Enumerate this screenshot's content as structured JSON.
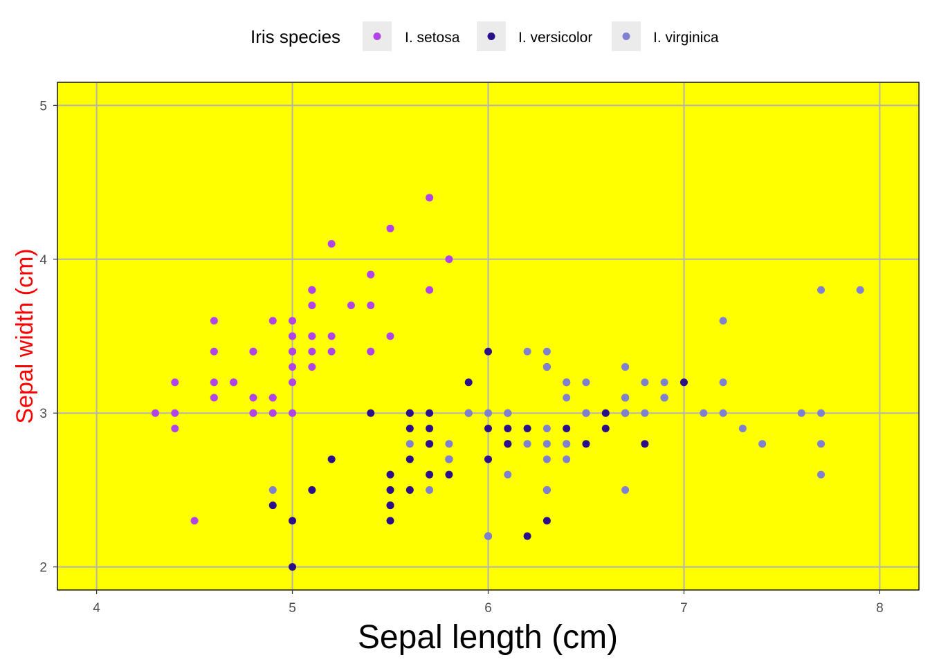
{
  "chart_data": {
    "type": "scatter",
    "title": "",
    "xlabel": "Sepal length (cm)",
    "ylabel": "Sepal width (cm)",
    "xlim": [
      3.8,
      8.2
    ],
    "ylim": [
      1.85,
      5.15
    ],
    "xticks": [
      4,
      5,
      6,
      7,
      8
    ],
    "yticks": [
      2,
      3,
      4,
      5
    ],
    "xtick_labels": [
      "4",
      "5",
      "6",
      "7",
      "8"
    ],
    "ytick_labels": [
      "2",
      "3",
      "4",
      "5"
    ],
    "grid": true,
    "legend_position": "top",
    "legend_title": "Iris species",
    "colors": {
      "panel_background": "#ffff00",
      "grid": "#b3b3b3",
      "ylabel": "#ff0000",
      "xlabel": "#000000"
    },
    "series": [
      {
        "name": "I. setosa",
        "color": "#b044e6",
        "points": [
          [
            5.1,
            3.5
          ],
          [
            4.9,
            3.0
          ],
          [
            4.7,
            3.2
          ],
          [
            4.6,
            3.1
          ],
          [
            5.0,
            3.6
          ],
          [
            5.4,
            3.9
          ],
          [
            4.6,
            3.4
          ],
          [
            5.0,
            3.4
          ],
          [
            4.4,
            2.9
          ],
          [
            4.9,
            3.1
          ],
          [
            5.4,
            3.7
          ],
          [
            4.8,
            3.4
          ],
          [
            4.8,
            3.0
          ],
          [
            4.3,
            3.0
          ],
          [
            5.8,
            4.0
          ],
          [
            5.7,
            4.4
          ],
          [
            5.4,
            3.9
          ],
          [
            5.1,
            3.5
          ],
          [
            5.7,
            3.8
          ],
          [
            5.1,
            3.8
          ],
          [
            5.4,
            3.4
          ],
          [
            5.1,
            3.7
          ],
          [
            4.6,
            3.6
          ],
          [
            5.1,
            3.3
          ],
          [
            4.8,
            3.4
          ],
          [
            5.0,
            3.0
          ],
          [
            5.0,
            3.4
          ],
          [
            5.2,
            3.5
          ],
          [
            5.2,
            3.4
          ],
          [
            4.7,
            3.2
          ],
          [
            4.8,
            3.1
          ],
          [
            5.4,
            3.4
          ],
          [
            5.2,
            4.1
          ],
          [
            5.5,
            4.2
          ],
          [
            4.9,
            3.1
          ],
          [
            5.0,
            3.2
          ],
          [
            5.5,
            3.5
          ],
          [
            4.9,
            3.6
          ],
          [
            4.4,
            3.0
          ],
          [
            5.1,
            3.4
          ],
          [
            5.0,
            3.5
          ],
          [
            4.5,
            2.3
          ],
          [
            4.4,
            3.2
          ],
          [
            5.0,
            3.5
          ],
          [
            5.1,
            3.8
          ],
          [
            4.8,
            3.0
          ],
          [
            5.1,
            3.8
          ],
          [
            4.6,
            3.2
          ],
          [
            5.3,
            3.7
          ],
          [
            5.0,
            3.3
          ]
        ]
      },
      {
        "name": "I. versicolor",
        "color": "#2b0e8a",
        "points": [
          [
            7.0,
            3.2
          ],
          [
            6.4,
            3.2
          ],
          [
            6.9,
            3.1
          ],
          [
            5.5,
            2.3
          ],
          [
            6.5,
            2.8
          ],
          [
            5.7,
            2.8
          ],
          [
            6.3,
            3.3
          ],
          [
            4.9,
            2.4
          ],
          [
            6.6,
            2.9
          ],
          [
            5.2,
            2.7
          ],
          [
            5.0,
            2.0
          ],
          [
            5.9,
            3.0
          ],
          [
            6.0,
            2.2
          ],
          [
            6.1,
            2.9
          ],
          [
            5.6,
            2.9
          ],
          [
            6.7,
            3.1
          ],
          [
            5.6,
            3.0
          ],
          [
            5.8,
            2.7
          ],
          [
            6.2,
            2.2
          ],
          [
            5.6,
            2.5
          ],
          [
            5.9,
            3.2
          ],
          [
            6.1,
            2.8
          ],
          [
            6.3,
            2.5
          ],
          [
            6.1,
            2.8
          ],
          [
            6.4,
            2.9
          ],
          [
            6.6,
            3.0
          ],
          [
            6.8,
            2.8
          ],
          [
            6.7,
            3.0
          ],
          [
            6.0,
            2.9
          ],
          [
            5.7,
            2.6
          ],
          [
            5.5,
            2.4
          ],
          [
            5.5,
            2.4
          ],
          [
            5.8,
            2.7
          ],
          [
            6.0,
            2.7
          ],
          [
            5.4,
            3.0
          ],
          [
            6.0,
            3.4
          ],
          [
            6.7,
            3.1
          ],
          [
            6.3,
            2.3
          ],
          [
            5.6,
            3.0
          ],
          [
            5.5,
            2.5
          ],
          [
            5.5,
            2.6
          ],
          [
            6.1,
            3.0
          ],
          [
            5.8,
            2.6
          ],
          [
            5.0,
            2.3
          ],
          [
            5.6,
            2.7
          ],
          [
            5.7,
            3.0
          ],
          [
            5.7,
            2.9
          ],
          [
            6.2,
            2.9
          ],
          [
            5.1,
            2.5
          ],
          [
            5.7,
            2.8
          ]
        ]
      },
      {
        "name": "I. virginica",
        "color": "#8080d0",
        "points": [
          [
            6.3,
            3.3
          ],
          [
            5.8,
            2.7
          ],
          [
            7.1,
            3.0
          ],
          [
            6.3,
            2.9
          ],
          [
            6.5,
            3.0
          ],
          [
            7.6,
            3.0
          ],
          [
            4.9,
            2.5
          ],
          [
            7.3,
            2.9
          ],
          [
            6.7,
            2.5
          ],
          [
            7.2,
            3.6
          ],
          [
            6.5,
            3.2
          ],
          [
            6.4,
            2.7
          ],
          [
            6.8,
            3.0
          ],
          [
            5.7,
            2.5
          ],
          [
            5.8,
            2.8
          ],
          [
            6.4,
            3.2
          ],
          [
            6.5,
            3.0
          ],
          [
            7.7,
            3.8
          ],
          [
            7.7,
            2.6
          ],
          [
            6.0,
            2.2
          ],
          [
            6.9,
            3.2
          ],
          [
            5.6,
            2.8
          ],
          [
            7.7,
            2.8
          ],
          [
            6.3,
            2.7
          ],
          [
            6.7,
            3.3
          ],
          [
            7.2,
            3.2
          ],
          [
            6.2,
            2.8
          ],
          [
            6.1,
            3.0
          ],
          [
            6.4,
            2.8
          ],
          [
            7.2,
            3.0
          ],
          [
            7.4,
            2.8
          ],
          [
            7.9,
            3.8
          ],
          [
            6.4,
            2.8
          ],
          [
            6.3,
            2.8
          ],
          [
            6.1,
            2.6
          ],
          [
            7.7,
            3.0
          ],
          [
            6.3,
            3.4
          ],
          [
            6.4,
            3.1
          ],
          [
            6.0,
            3.0
          ],
          [
            6.9,
            3.1
          ],
          [
            6.7,
            3.1
          ],
          [
            6.9,
            3.1
          ],
          [
            5.8,
            2.7
          ],
          [
            6.8,
            3.2
          ],
          [
            6.7,
            3.3
          ],
          [
            6.7,
            3.0
          ],
          [
            6.3,
            2.5
          ],
          [
            6.5,
            3.0
          ],
          [
            6.2,
            3.4
          ],
          [
            5.9,
            3.0
          ]
        ]
      }
    ]
  }
}
